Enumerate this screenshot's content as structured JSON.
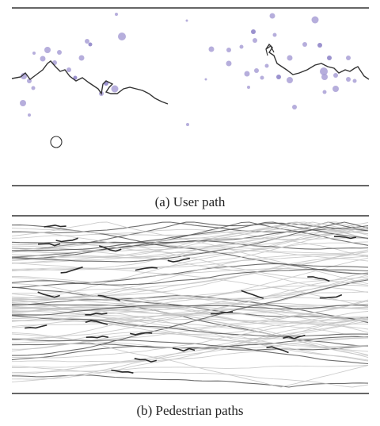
{
  "panel_a": {
    "caption": "(a) User path",
    "colors": {
      "dot": "#a9a0d6",
      "dot_dark": "#8a7fc6",
      "path": "#333333",
      "rule": "#333333"
    },
    "icons": [
      "agent-circle-icon"
    ]
  },
  "panel_b": {
    "caption": "(b) Pedestrian paths",
    "colors": {
      "path_light": "#cfcfcf",
      "path_dark": "#2a2a2a",
      "rule": "#333333"
    }
  }
}
